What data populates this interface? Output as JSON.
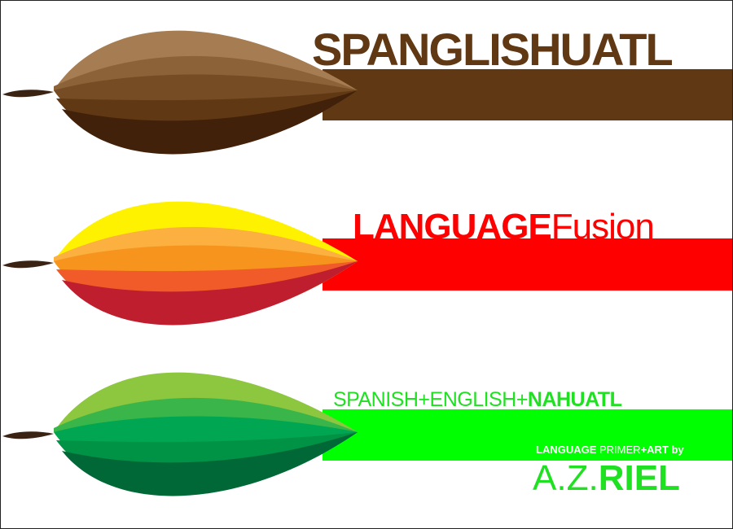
{
  "colors": {
    "brown_band": "#603813",
    "red_band": "#ff0000",
    "green_band": "#00ff00",
    "brown_text": "#603813",
    "red_text": "#ff0000",
    "green_text": "#1fe021",
    "white_text": "#ffffff",
    "stem": "#3b2314"
  },
  "title": "SPANGLISHUATL",
  "line2": {
    "bold": "LANGUAGE",
    "regular": "Fusion"
  },
  "line3": {
    "part1": "SPANISH",
    "plus1": "+",
    "part2": "ENGLISH",
    "plus2": "+",
    "part3": "NAHUATL"
  },
  "primer": {
    "bold1": "LANGUAGE",
    "regular": " PRIMER",
    "bold2": "+ART",
    "by": " by"
  },
  "author": {
    "initials": "A.Z.",
    "surname": "RIEL"
  },
  "pods": [
    {
      "name": "brown-cacao-pod",
      "shades": [
        "#a67c52",
        "#8c6239",
        "#754c24",
        "#603813",
        "#42210b"
      ]
    },
    {
      "name": "orange-cacao-pod",
      "shades": [
        "#fff200",
        "#fbb040",
        "#f7941d",
        "#f15a29",
        "#be1e2d"
      ]
    },
    {
      "name": "green-cacao-pod",
      "shades": [
        "#8dc63f",
        "#39b54a",
        "#00a651",
        "#009245",
        "#006837"
      ]
    }
  ]
}
